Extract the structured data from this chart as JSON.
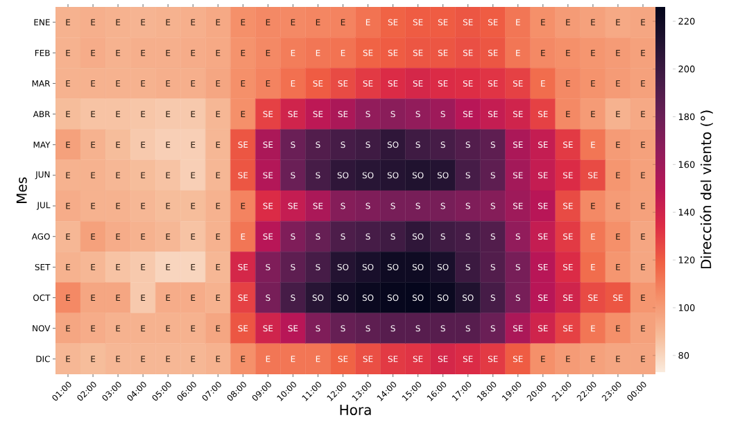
{
  "chart_data": {
    "type": "heatmap",
    "xlabel": "Hora",
    "ylabel": "Mes",
    "clabel": "Dirección del viento (°)",
    "categories": [
      "01:00",
      "02:00",
      "03:00",
      "04:00",
      "05:00",
      "06:00",
      "07:00",
      "08:00",
      "09:00",
      "10:00",
      "11:00",
      "12:00",
      "13:00",
      "14:00",
      "15:00",
      "16:00",
      "17:00",
      "18:00",
      "19:00",
      "20:00",
      "21:00",
      "22:00",
      "23:00",
      "00:00"
    ],
    "y_categories": [
      "ENE",
      "FEB",
      "MAR",
      "ABR",
      "MAY",
      "JUN",
      "JUL",
      "AGO",
      "SET",
      "OCT",
      "NOV",
      "DIC"
    ],
    "clim": [
      73,
      226
    ],
    "cticks": [
      80,
      100,
      120,
      140,
      160,
      180,
      200,
      220
    ],
    "cells": [
      [
        92,
        93,
        92,
        91,
        92,
        93,
        95,
        104,
        106,
        106,
        107,
        108,
        113,
        118,
        120,
        120,
        122,
        120,
        112,
        104,
        100,
        98,
        95,
        96
      ],
      [
        92,
        94,
        92,
        93,
        93,
        94,
        95,
        103,
        106,
        110,
        112,
        113,
        118,
        120,
        122,
        122,
        124,
        122,
        112,
        106,
        104,
        102,
        100,
        98
      ],
      [
        92,
        92,
        92,
        92,
        93,
        93,
        96,
        104,
        108,
        114,
        120,
        125,
        130,
        135,
        138,
        135,
        134,
        132,
        128,
        115,
        106,
        103,
        100,
        98
      ],
      [
        88,
        86,
        86,
        85,
        84,
        84,
        90,
        104,
        128,
        140,
        148,
        155,
        165,
        168,
        165,
        160,
        150,
        145,
        140,
        128,
        106,
        100,
        92,
        95
      ],
      [
        98,
        92,
        88,
        84,
        82,
        82,
        90,
        122,
        155,
        180,
        190,
        195,
        198,
        205,
        198,
        195,
        190,
        185,
        155,
        145,
        130,
        112,
        100,
        98
      ],
      [
        92,
        92,
        90,
        88,
        86,
        82,
        90,
        122,
        152,
        180,
        195,
        205,
        208,
        210,
        212,
        210,
        195,
        185,
        158,
        145,
        135,
        125,
        102,
        98
      ],
      [
        94,
        92,
        92,
        90,
        88,
        88,
        92,
        108,
        135,
        145,
        155,
        170,
        172,
        175,
        175,
        175,
        172,
        170,
        160,
        150,
        125,
        106,
        100,
        98
      ],
      [
        90,
        98,
        94,
        92,
        90,
        86,
        92,
        112,
        150,
        172,
        182,
        192,
        195,
        198,
        205,
        198,
        195,
        190,
        165,
        145,
        130,
        112,
        104,
        96
      ],
      [
        92,
        90,
        86,
        84,
        80,
        80,
        90,
        138,
        172,
        185,
        195,
        210,
        215,
        220,
        220,
        215,
        200,
        190,
        175,
        150,
        135,
        115,
        102,
        96
      ],
      [
        106,
        96,
        96,
        84,
        94,
        94,
        92,
        128,
        175,
        195,
        208,
        218,
        222,
        224,
        225,
        222,
        212,
        195,
        175,
        150,
        140,
        125,
        122,
        102
      ],
      [
        96,
        94,
        92,
        92,
        92,
        92,
        96,
        122,
        140,
        150,
        172,
        182,
        185,
        188,
        188,
        188,
        188,
        180,
        155,
        140,
        128,
        112,
        104,
        98
      ],
      [
        90,
        88,
        90,
        90,
        90,
        90,
        92,
        104,
        112,
        112,
        112,
        118,
        124,
        130,
        132,
        138,
        135,
        130,
        120,
        104,
        100,
        98,
        96,
        96
      ]
    ],
    "cell_labels": [
      [
        "E",
        "E",
        "E",
        "E",
        "E",
        "E",
        "E",
        "E",
        "E",
        "E",
        "E",
        "E",
        "E",
        "SE",
        "SE",
        "SE",
        "SE",
        "SE",
        "E",
        "E",
        "E",
        "E",
        "E",
        "E"
      ],
      [
        "E",
        "E",
        "E",
        "E",
        "E",
        "E",
        "E",
        "E",
        "E",
        "E",
        "E",
        "E",
        "SE",
        "SE",
        "SE",
        "SE",
        "SE",
        "SE",
        "E",
        "E",
        "E",
        "E",
        "E",
        "E"
      ],
      [
        "E",
        "E",
        "E",
        "E",
        "E",
        "E",
        "E",
        "E",
        "E",
        "E",
        "SE",
        "SE",
        "SE",
        "SE",
        "SE",
        "SE",
        "SE",
        "SE",
        "SE",
        "E",
        "E",
        "E",
        "E",
        "E"
      ],
      [
        "E",
        "E",
        "E",
        "E",
        "E",
        "E",
        "E",
        "E",
        "SE",
        "SE",
        "SE",
        "SE",
        "S",
        "S",
        "S",
        "S",
        "SE",
        "SE",
        "SE",
        "SE",
        "E",
        "E",
        "E",
        "E"
      ],
      [
        "E",
        "E",
        "E",
        "E",
        "E",
        "E",
        "E",
        "SE",
        "SE",
        "S",
        "S",
        "S",
        "S",
        "SO",
        "S",
        "S",
        "S",
        "S",
        "SE",
        "SE",
        "SE",
        "E",
        "E",
        "E"
      ],
      [
        "E",
        "E",
        "E",
        "E",
        "E",
        "E",
        "E",
        "SE",
        "SE",
        "S",
        "S",
        "SO",
        "SO",
        "SO",
        "SO",
        "SO",
        "S",
        "S",
        "SE",
        "SE",
        "SE",
        "SE",
        "E",
        "E"
      ],
      [
        "E",
        "E",
        "E",
        "E",
        "E",
        "E",
        "E",
        "E",
        "SE",
        "SE",
        "SE",
        "S",
        "S",
        "S",
        "S",
        "S",
        "S",
        "S",
        "SE",
        "SE",
        "SE",
        "E",
        "E",
        "E"
      ],
      [
        "E",
        "E",
        "E",
        "E",
        "E",
        "E",
        "E",
        "E",
        "SE",
        "S",
        "S",
        "S",
        "S",
        "S",
        "SO",
        "S",
        "S",
        "S",
        "S",
        "SE",
        "SE",
        "E",
        "E",
        "E"
      ],
      [
        "E",
        "E",
        "E",
        "E",
        "E",
        "E",
        "E",
        "SE",
        "S",
        "S",
        "S",
        "SO",
        "SO",
        "SO",
        "SO",
        "SO",
        "S",
        "S",
        "S",
        "SE",
        "SE",
        "E",
        "E",
        "E"
      ],
      [
        "E",
        "E",
        "E",
        "E",
        "E",
        "E",
        "E",
        "SE",
        "S",
        "S",
        "SO",
        "SO",
        "SO",
        "SO",
        "SO",
        "SO",
        "SO",
        "S",
        "S",
        "SE",
        "SE",
        "SE",
        "SE",
        "E"
      ],
      [
        "E",
        "E",
        "E",
        "E",
        "E",
        "E",
        "E",
        "SE",
        "SE",
        "SE",
        "S",
        "S",
        "S",
        "S",
        "S",
        "S",
        "S",
        "S",
        "SE",
        "SE",
        "SE",
        "E",
        "E",
        "E"
      ],
      [
        "E",
        "E",
        "E",
        "E",
        "E",
        "E",
        "E",
        "E",
        "E",
        "E",
        "E",
        "SE",
        "SE",
        "SE",
        "SE",
        "SE",
        "SE",
        "SE",
        "SE",
        "E",
        "E",
        "E",
        "E",
        "E"
      ]
    ]
  }
}
